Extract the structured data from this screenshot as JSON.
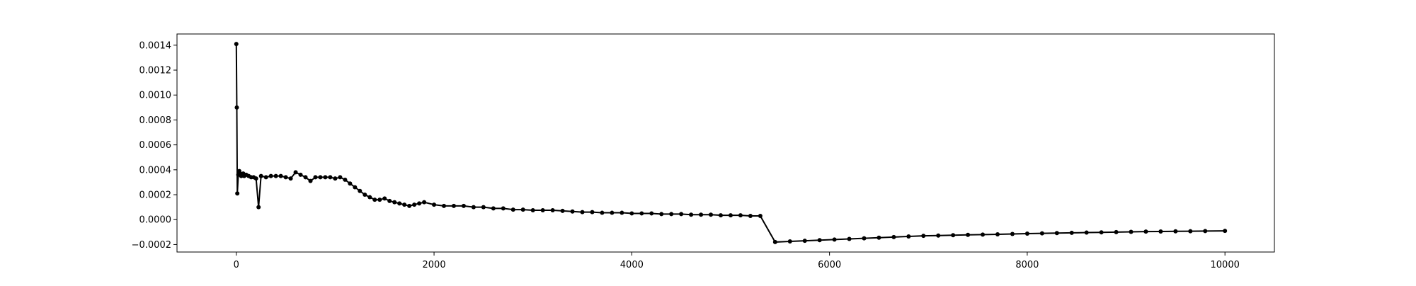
{
  "chart_data": {
    "type": "line",
    "title": "",
    "xlabel": "",
    "ylabel": "",
    "xlim": [
      -600,
      10500
    ],
    "ylim": [
      -0.00026,
      0.00149
    ],
    "x_ticks": [
      0,
      2000,
      4000,
      6000,
      8000,
      10000
    ],
    "x_tick_labels": [
      "0",
      "2000",
      "4000",
      "6000",
      "8000",
      "10000"
    ],
    "y_ticks": [
      -0.0002,
      0.0,
      0.0002,
      0.0004,
      0.0006,
      0.0008,
      0.001,
      0.0012,
      0.0014
    ],
    "y_tick_labels": [
      "−0.0002",
      "0.0000",
      "0.0002",
      "0.0004",
      "0.0006",
      "0.0008",
      "0.0010",
      "0.0012",
      "0.0014"
    ],
    "grid": false,
    "line_color": "#000000",
    "marker": "circle",
    "series": [
      {
        "x": [
          0,
          5,
          10,
          20,
          30,
          40,
          50,
          60,
          70,
          80,
          100,
          125,
          150,
          175,
          200,
          225,
          250,
          300,
          350,
          400,
          450,
          500,
          550,
          600,
          650,
          700,
          750,
          800,
          850,
          900,
          950,
          1000,
          1050,
          1100,
          1150,
          1200,
          1250,
          1300,
          1350,
          1400,
          1450,
          1500,
          1550,
          1600,
          1650,
          1700,
          1750,
          1800,
          1850,
          1900,
          2000,
          2100,
          2200,
          2300,
          2400,
          2500,
          2600,
          2700,
          2800,
          2900,
          3000,
          3100,
          3200,
          3300,
          3400,
          3500,
          3600,
          3700,
          3800,
          3900,
          4000,
          4100,
          4200,
          4300,
          4400,
          4500,
          4600,
          4700,
          4800,
          4900,
          5000,
          5100,
          5200,
          5300,
          5450,
          5600,
          5750,
          5900,
          6050,
          6200,
          6350,
          6500,
          6650,
          6800,
          6950,
          7100,
          7250,
          7400,
          7550,
          7700,
          7850,
          8000,
          8150,
          8300,
          8450,
          8600,
          8750,
          8900,
          9050,
          9200,
          9350,
          9500,
          9650,
          9800,
          10000
        ],
        "y": [
          0.00141,
          0.0009,
          0.00021,
          0.00036,
          0.00039,
          0.00037,
          0.00035,
          0.00036,
          0.00037,
          0.00035,
          0.00036,
          0.00035,
          0.00034,
          0.00034,
          0.00033,
          0.0001,
          0.00035,
          0.00034,
          0.00035,
          0.00035,
          0.00035,
          0.00034,
          0.00033,
          0.00038,
          0.00036,
          0.00034,
          0.00031,
          0.00034,
          0.00034,
          0.00034,
          0.00034,
          0.00033,
          0.00034,
          0.00032,
          0.00029,
          0.00026,
          0.00023,
          0.0002,
          0.00018,
          0.00016,
          0.00016,
          0.00017,
          0.00015,
          0.00014,
          0.00013,
          0.00012,
          0.00011,
          0.00012,
          0.00013,
          0.00014,
          0.00012,
          0.00011,
          0.00011,
          0.00011,
          0.0001,
          0.0001,
          9e-05,
          9e-05,
          8e-05,
          8e-05,
          7.5e-05,
          7.5e-05,
          7.5e-05,
          7e-05,
          6.5e-05,
          6e-05,
          6e-05,
          5.5e-05,
          5.5e-05,
          5.5e-05,
          5e-05,
          5e-05,
          5e-05,
          4.5e-05,
          4.5e-05,
          4.5e-05,
          4e-05,
          4e-05,
          4e-05,
          3.5e-05,
          3.5e-05,
          3.5e-05,
          3e-05,
          3e-05,
          -0.00018,
          -0.000175,
          -0.00017,
          -0.000165,
          -0.00016,
          -0.000155,
          -0.00015,
          -0.000145,
          -0.00014,
          -0.000135,
          -0.00013,
          -0.000128,
          -0.000125,
          -0.000122,
          -0.00012,
          -0.000118,
          -0.000115,
          -0.000112,
          -0.00011,
          -0.000108,
          -0.000106,
          -0.000104,
          -0.000102,
          -0.0001,
          -9.8e-05,
          -9.6e-05,
          -9.5e-05,
          -9.4e-05,
          -9.3e-05,
          -9.2e-05,
          -9e-05
        ]
      }
    ]
  }
}
